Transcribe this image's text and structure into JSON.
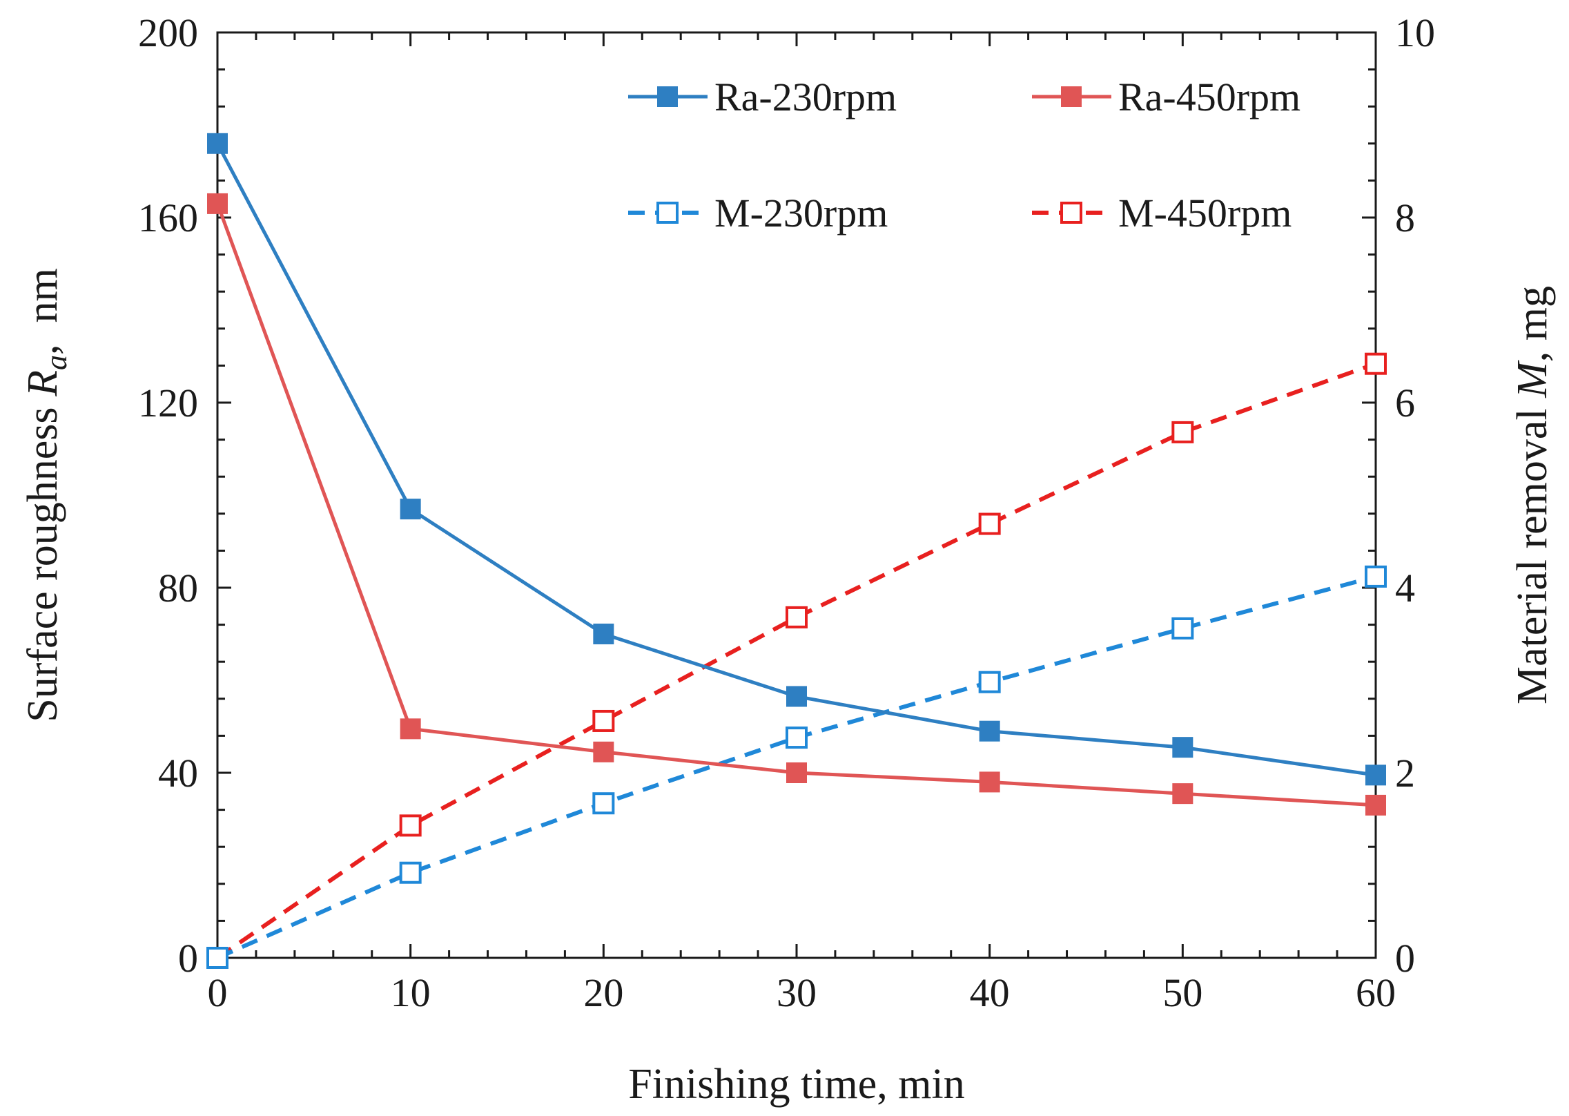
{
  "chart_data": {
    "type": "line",
    "x": [
      0,
      10,
      20,
      30,
      40,
      50,
      60
    ],
    "xlabel": "Finishing time, min",
    "xlim": [
      0,
      60
    ],
    "xticks": [
      "0",
      "10",
      "20",
      "30",
      "40",
      "50",
      "60"
    ],
    "ylabel_left": {
      "prefix": "Surface roughness ",
      "symbol": "R",
      "subscript": "a",
      "suffix": ",  nm"
    },
    "ylim_left": [
      0,
      200
    ],
    "yticks_left": [
      "0",
      "40",
      "80",
      "120",
      "160",
      "200"
    ],
    "ylabel_right": {
      "prefix": "Material removal ",
      "symbol": "M",
      "suffix": ", mg"
    },
    "ylim_right": [
      0,
      10
    ],
    "yticks_right": [
      "0",
      "2",
      "4",
      "6",
      "8",
      "10"
    ],
    "grid": false,
    "legend_position": "top",
    "series": [
      {
        "name": "Ra-230rpm",
        "axis": "left",
        "style": "solid",
        "marker": "filled-square",
        "color": "#2e7fc2",
        "values": [
          176,
          97,
          70,
          56.5,
          49,
          45.5,
          39.5
        ]
      },
      {
        "name": "Ra-450rpm",
        "axis": "left",
        "style": "solid",
        "marker": "filled-square",
        "color": "#e05555",
        "values": [
          163,
          49.5,
          44.5,
          40,
          38,
          35.5,
          33
        ]
      },
      {
        "name": "M-230rpm",
        "axis": "right",
        "style": "dashed",
        "marker": "open-square",
        "color": "#1f88d8",
        "values": [
          0,
          0.92,
          1.67,
          2.38,
          2.98,
          3.56,
          4.12
        ]
      },
      {
        "name": "M-450rpm",
        "axis": "right",
        "style": "dashed",
        "marker": "open-square",
        "color": "#e8201f",
        "values": [
          0,
          1.43,
          2.56,
          3.68,
          4.69,
          5.68,
          6.42
        ]
      }
    ]
  }
}
